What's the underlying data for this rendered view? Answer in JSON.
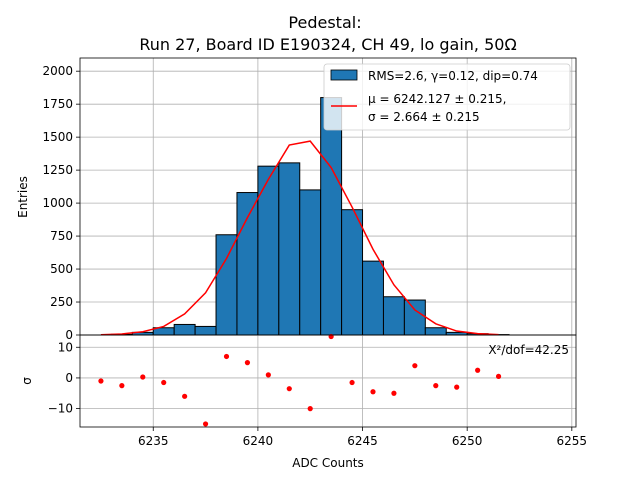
{
  "chart_data": {
    "type": "histogram",
    "title": "Pedestal:",
    "subtitle": "Run 27, Board ID E190324, CH 49, lo gain, 50Ω",
    "colors": {
      "bar": "#1f77b4",
      "fit": "#ff0000",
      "residual": "#ff0000",
      "grid": "#b0b0b0"
    },
    "top_panel": {
      "ylabel": "Entries",
      "ylim": [
        0,
        2100
      ],
      "yticks": [
        0,
        250,
        500,
        750,
        1000,
        1250,
        1500,
        1750,
        2000
      ],
      "bins": [
        {
          "x": 6233.5,
          "count": 5
        },
        {
          "x": 6234.5,
          "count": 20
        },
        {
          "x": 6235.5,
          "count": 55
        },
        {
          "x": 6236.5,
          "count": 80
        },
        {
          "x": 6237.5,
          "count": 65
        },
        {
          "x": 6238.5,
          "count": 760
        },
        {
          "x": 6239.5,
          "count": 1080
        },
        {
          "x": 6240.5,
          "count": 1280
        },
        {
          "x": 6241.5,
          "count": 1305
        },
        {
          "x": 6242.5,
          "count": 1100
        },
        {
          "x": 6243.5,
          "count": 1800
        },
        {
          "x": 6244.5,
          "count": 950
        },
        {
          "x": 6245.5,
          "count": 560
        },
        {
          "x": 6246.5,
          "count": 290
        },
        {
          "x": 6247.5,
          "count": 265
        },
        {
          "x": 6248.5,
          "count": 55
        },
        {
          "x": 6249.5,
          "count": 20
        },
        {
          "x": 6250.5,
          "count": 10
        },
        {
          "x": 6251.5,
          "count": 3
        }
      ],
      "fit_curve": {
        "x": [
          6232.5,
          6233.5,
          6234.5,
          6235.5,
          6236.5,
          6237.5,
          6238.5,
          6239.5,
          6240.5,
          6241.5,
          6242.5,
          6243.5,
          6244.5,
          6245.5,
          6246.5,
          6247.5,
          6248.5,
          6249.5,
          6250.5,
          6251.5
        ],
        "y": [
          2,
          8,
          25,
          65,
          160,
          320,
          580,
          890,
          1180,
          1440,
          1470,
          1270,
          970,
          650,
          380,
          190,
          85,
          30,
          10,
          3
        ]
      },
      "legend": {
        "location": "top-right",
        "bar_label": "RMS=2.6, γ=0.12, dip=0.74",
        "fit_label_line1": "μ = 6242.127 ± 0.215,",
        "fit_label_line2": "σ = 2.664 ± 0.215"
      }
    },
    "bottom_panel": {
      "ylabel": "σ",
      "ylim": [
        -16,
        14
      ],
      "yticks": [
        -10,
        0,
        10
      ],
      "annotation": "X²/dof=42.25",
      "residuals": {
        "x": [
          6232.5,
          6233.5,
          6234.5,
          6235.5,
          6236.5,
          6237.5,
          6238.5,
          6239.5,
          6240.5,
          6241.5,
          6242.5,
          6243.5,
          6244.5,
          6245.5,
          6246.5,
          6247.5,
          6248.5,
          6249.5,
          6250.5,
          6251.5
        ],
        "y": [
          -1,
          -2.5,
          0.3,
          -1.5,
          -6,
          -15,
          7,
          5,
          1,
          -3.5,
          -10,
          13.5,
          -1.5,
          -4.5,
          -5,
          4,
          -2.5,
          -3,
          2.5,
          0.5
        ]
      }
    },
    "xlabel": "ADC Counts",
    "xlim": [
      6231.5,
      6255.2
    ],
    "xticks": [
      6235,
      6240,
      6245,
      6250,
      6255
    ]
  }
}
